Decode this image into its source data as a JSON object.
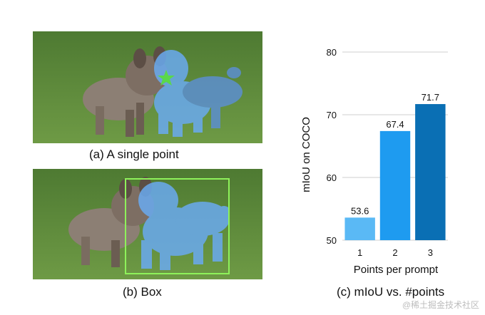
{
  "panels": {
    "a": {
      "caption": "(a) A single point"
    },
    "b": {
      "caption": "(b) Box"
    },
    "c": {
      "caption": "(c) mIoU vs. #points"
    }
  },
  "colors": {
    "grass": "#5f8a3c",
    "mask": "#6aaaf0",
    "star": "#5ad84a",
    "box": "#8ef25a",
    "bar1": "#5ab9f5",
    "bar2": "#1e9bf0",
    "bar3": "#0a6fb4"
  },
  "chart_data": {
    "type": "bar",
    "categories": [
      "1",
      "2",
      "3"
    ],
    "values": [
      53.6,
      67.4,
      71.7
    ],
    "value_labels": [
      "53.6",
      "67.4",
      "71.7"
    ],
    "xlabel": "Points per prompt",
    "ylabel": "mIoU on COCO",
    "ylim": [
      50,
      80
    ],
    "yticks": [
      50,
      60,
      70,
      80
    ],
    "grid": true
  },
  "watermark": "@稀土掘金技术社区"
}
